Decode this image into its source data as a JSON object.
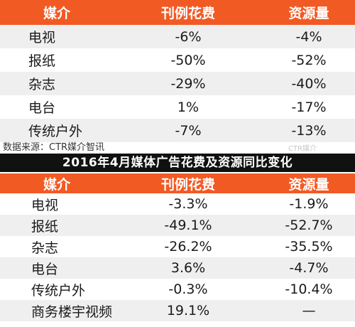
{
  "table1": {
    "headers": [
      "媒介",
      "刊例花费",
      "资源量"
    ],
    "rows": [
      [
        "电视",
        "-6%",
        "-4%"
      ],
      [
        "报纸",
        "-50%",
        "-52%"
      ],
      [
        "杂志",
        "-29%",
        "-40%"
      ],
      [
        "电台",
        "1%",
        "-17%"
      ],
      [
        "传统户外",
        "-7%",
        "-13%"
      ]
    ]
  },
  "source_note": "数据来源：CTR媒介智讯",
  "watermark": "CTR媒介",
  "title": "2016年4月媒体广告花费及资源同比变化",
  "table2": {
    "headers": [
      "媒介",
      "刊例花费",
      "资源量"
    ],
    "rows": [
      [
        "电视",
        "-3.3%",
        "-1.9%"
      ],
      [
        "报纸",
        "-49.1%",
        "-52.7%"
      ],
      [
        "杂志",
        "-26.2%",
        "-35.5%"
      ],
      [
        "电台",
        "3.6%",
        "-4.7%"
      ],
      [
        "传统户外",
        "-0.3%",
        "-10.4%"
      ],
      [
        "商务楼宇视频",
        "19.1%",
        "—"
      ]
    ]
  },
  "colors": {
    "header_bg": "#f25a24",
    "title_bg": "#111111",
    "stripe": "#efefef"
  }
}
